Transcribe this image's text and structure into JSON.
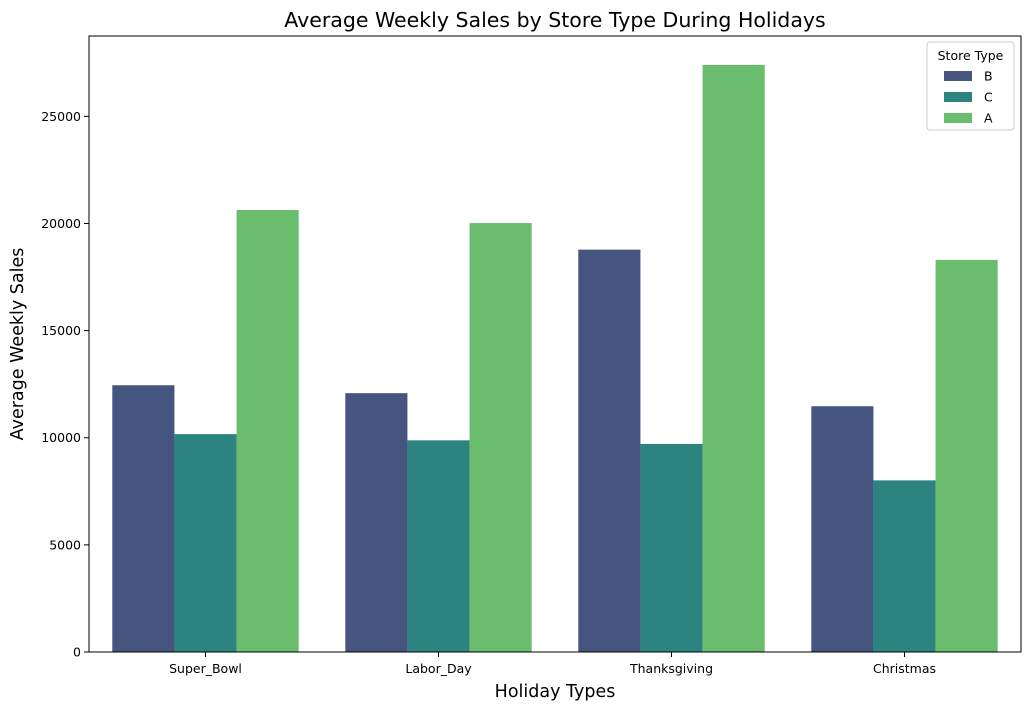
{
  "chart_data": {
    "type": "bar",
    "title": "Average Weekly Sales by Store Type During Holidays",
    "xlabel": "Holiday Types",
    "ylabel": "Average Weekly Sales",
    "categories": [
      "Super_Bowl",
      "Labor_Day",
      "Thanksgiving",
      "Christmas"
    ],
    "series": [
      {
        "name": "B",
        "color": "#46557f",
        "values": [
          12450,
          12080,
          18780,
          11470
        ]
      },
      {
        "name": "C",
        "color": "#2d8380",
        "values": [
          10170,
          9880,
          9710,
          8010
        ]
      },
      {
        "name": "A",
        "color": "#6abd6c",
        "values": [
          20630,
          20020,
          27400,
          18300
        ]
      }
    ],
    "ylim": [
      0,
      28750
    ],
    "yticks": [
      0,
      5000,
      10000,
      15000,
      20000,
      25000
    ],
    "ytick_labels": [
      "0",
      "5000",
      "10000",
      "15000",
      "20000",
      "25000"
    ],
    "legend": {
      "title": "Store Type",
      "location": "top-right"
    },
    "grid": false
  }
}
